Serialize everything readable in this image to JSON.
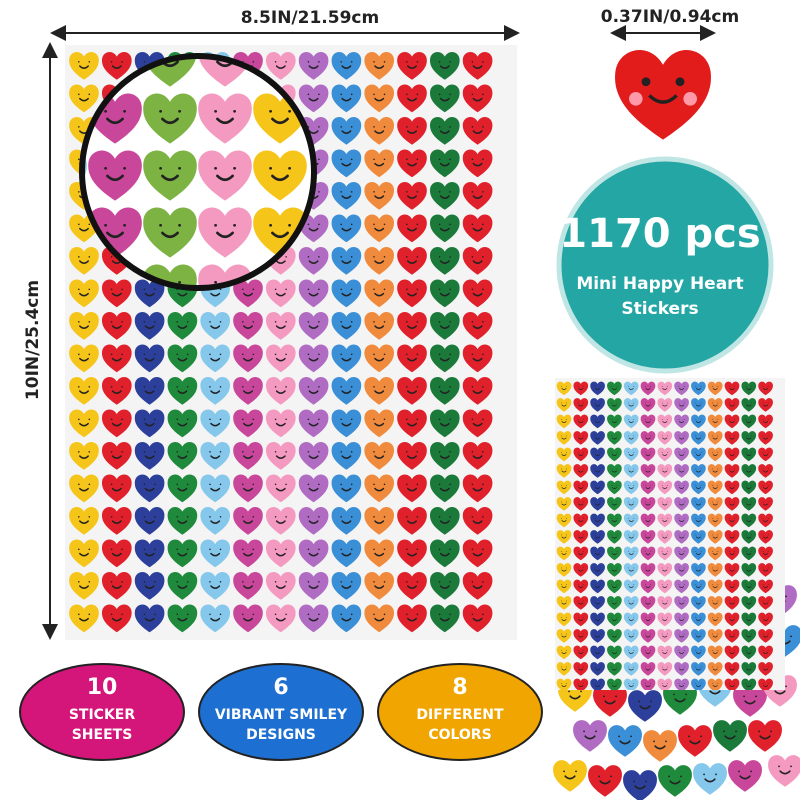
{
  "dimensions": {
    "width": "8.5IN/21.59cm",
    "height": "10IN/25.4cm",
    "sticker_size": "0.37IN/0.94cm"
  },
  "badge": {
    "count": "1170 pcs",
    "line1": "Mini Happy Heart",
    "line2": "Stickers"
  },
  "features": [
    {
      "number": "10",
      "line1": "STICKER",
      "line2": "SHEETS"
    },
    {
      "number": "6",
      "line1": "VIBRANT SMILEY",
      "line2": "DESIGNS"
    },
    {
      "number": "8",
      "line1": "DIFFERENT",
      "line2": "COLORS"
    }
  ]
}
